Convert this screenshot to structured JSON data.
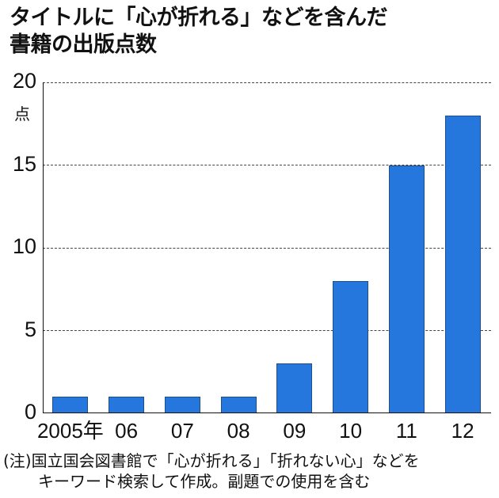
{
  "title": {
    "line1": "タイトルに「心が折れる」などを含んだ",
    "line2": "書籍の出版点数"
  },
  "axis": {
    "y_unit": "点",
    "y_ticks": [
      "0",
      "5",
      "10",
      "15",
      "20"
    ],
    "x_ticks": [
      "2005年",
      "06",
      "07",
      "08",
      "09",
      "10",
      "11",
      "12"
    ]
  },
  "note": {
    "line1": "(注)国立国会図書館で「心が折れる」「折れない心」などを",
    "line2": "キーワード検索して作成。副題での使用を含む"
  },
  "colors": {
    "bar": "#2577dd",
    "bar_border": "#1d4f8c"
  },
  "chart_data": {
    "type": "bar",
    "title": "タイトルに「心が折れる」などを含んだ書籍の出版点数",
    "categories": [
      "2005年",
      "06",
      "07",
      "08",
      "09",
      "10",
      "11",
      "12"
    ],
    "values": [
      1,
      1,
      1,
      1,
      3,
      8,
      15,
      18
    ],
    "xlabel": "",
    "ylabel": "点",
    "ylim": [
      0,
      20
    ],
    "yticks": [
      0,
      5,
      10,
      15,
      20
    ],
    "grid": "horizontal dashed",
    "legend": null,
    "annotations": [
      "(注)国立国会図書館で「心が折れる」「折れない心」などをキーワード検索して作成。副題での使用を含む"
    ]
  }
}
